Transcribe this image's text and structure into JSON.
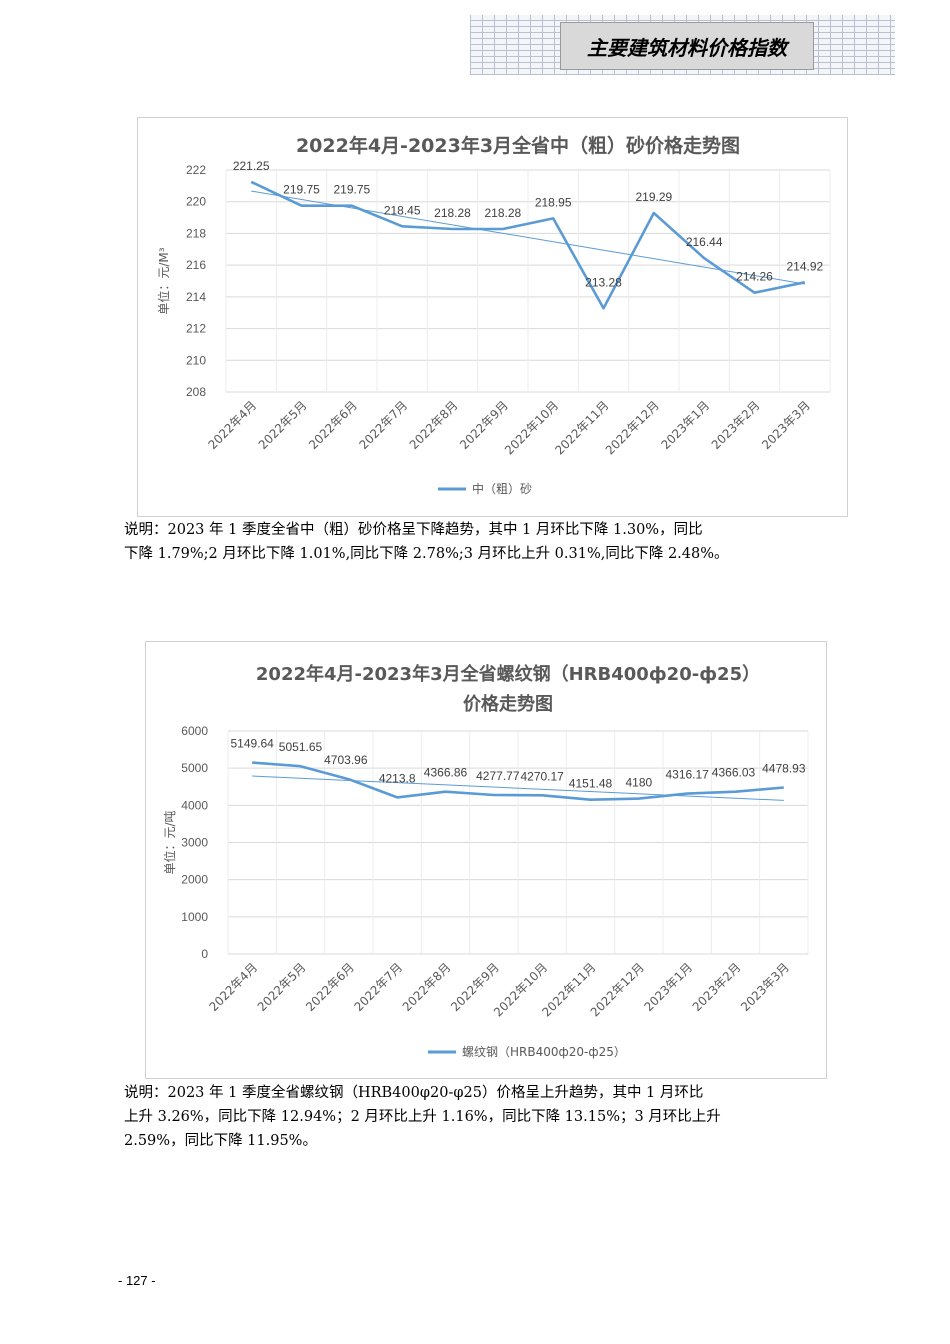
{
  "header": {
    "title": "主要建筑材料价格指数"
  },
  "charts": [
    {
      "id": "chart1",
      "title_lines": [
        "2022年4月-2023年3月全省中（粗）砂价格走势图"
      ],
      "ylabel": "单位：元/M³",
      "legend": "中（粗）砂",
      "value_labels": [
        "221.25",
        "219.75",
        "219.75",
        "218.45",
        "218.28",
        "218.28",
        "218.95",
        "213.28",
        "219.29",
        "216.44",
        "214.26",
        "214.92"
      ]
    },
    {
      "id": "chart2",
      "title_lines": [
        "2022年4月-2023年3月全省螺纹钢（HRB400ф20-ф25）",
        "价格走势图"
      ],
      "ylabel": "单位：元/吨",
      "legend": "螺纹钢（HRB400ф20-ф25）",
      "value_labels": [
        "5149.64",
        "5051.65",
        "4703.96",
        "4213.8",
        "4366.86",
        "4277.77",
        "4270.17",
        "4151.48",
        "4180",
        "4316.17",
        "4366.03",
        "4478.93"
      ]
    }
  ],
  "chart_data": [
    {
      "type": "line",
      "title": "2022年4月-2023年3月全省中（粗）砂价格走势图",
      "ylabel": "单位：元/M³",
      "xlabel": "",
      "categories": [
        "2022年4月",
        "2022年5月",
        "2022年6月",
        "2022年7月",
        "2022年8月",
        "2022年9月",
        "2022年10月",
        "2022年11月",
        "2022年12月",
        "2023年1月",
        "2023年2月",
        "2023年3月"
      ],
      "series": [
        {
          "name": "中（粗）砂",
          "values": [
            221.25,
            219.75,
            219.75,
            218.45,
            218.28,
            218.28,
            218.95,
            213.28,
            219.29,
            216.44,
            214.26,
            214.92
          ]
        }
      ],
      "yticks": [
        "208",
        "210",
        "212",
        "214",
        "216",
        "218",
        "220",
        "222"
      ],
      "ylim": [
        208,
        222
      ],
      "trendline": true,
      "grid": true,
      "legend_position": "bottom",
      "color": "#5b9bd5"
    },
    {
      "type": "line",
      "title": "2022年4月-2023年3月全省螺纹钢（HRB400ф20-ф25）价格走势图",
      "ylabel": "单位：元/吨",
      "xlabel": "",
      "categories": [
        "2022年4月",
        "2022年5月",
        "2022年6月",
        "2022年7月",
        "2022年8月",
        "2022年9月",
        "2022年10月",
        "2022年11月",
        "2022年12月",
        "2023年1月",
        "2023年2月",
        "2023年3月"
      ],
      "series": [
        {
          "name": "螺纹钢（HRB400ф20-ф25）",
          "values": [
            5149.64,
            5051.65,
            4703.96,
            4213.8,
            4366.86,
            4277.77,
            4270.17,
            4151.48,
            4180,
            4316.17,
            4366.03,
            4478.93
          ]
        }
      ],
      "yticks": [
        "0",
        "1000",
        "2000",
        "3000",
        "4000",
        "5000",
        "6000"
      ],
      "ylim": [
        0,
        6000
      ],
      "trendline": true,
      "grid": true,
      "legend_position": "bottom",
      "color": "#5b9bd5"
    }
  ],
  "notes": {
    "note1": [
      "说明：2023 年 1 季度全省中（粗）砂价格呈下降趋势，其中 1 月环比下降 1.30%，同比",
      "下降 1.79%;2 月环比下降 1.01%,同比下降 2.78%;3 月环比上升 0.31%,同比下降 2.48%。"
    ],
    "note2": [
      "说明：2023 年 1 季度全省螺纹钢（HRB400φ20-φ25）价格呈上升趋势，其中 1 月环比",
      "上升 3.26%，同比下降 12.94%；2 月环比上升 1.16%，同比下降 13.15%；3 月环比上升",
      "2.59%，同比下降 11.95%。"
    ]
  },
  "footer": {
    "page_number": "- 127 -"
  }
}
